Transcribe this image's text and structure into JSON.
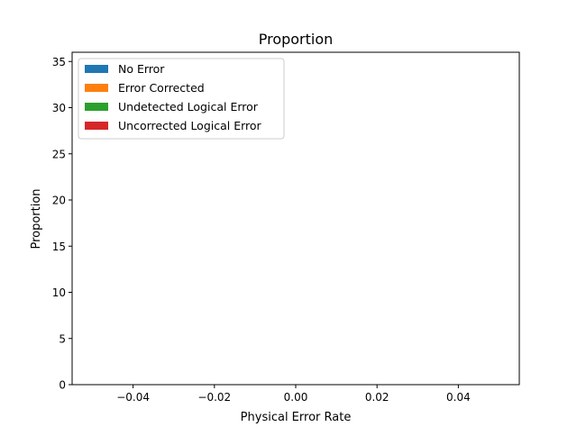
{
  "chart_data": {
    "type": "bar",
    "title": "Proportion",
    "xlabel": "Physical Error Rate",
    "ylabel": "Proportion",
    "xlim": [
      -0.055,
      0.055
    ],
    "ylim": [
      0,
      36
    ],
    "xticks": [
      -0.04,
      -0.02,
      0.0,
      0.02,
      0.04
    ],
    "xtick_labels": [
      "−0.04",
      "−0.02",
      "0.00",
      "0.02",
      "0.04"
    ],
    "yticks": [
      0,
      5,
      10,
      15,
      20,
      25,
      30,
      35
    ],
    "ytick_labels": [
      "0",
      "5",
      "10",
      "15",
      "20",
      "25",
      "30",
      "35"
    ],
    "grid": false,
    "legend_position": "top-left",
    "series": [
      {
        "name": "No Error",
        "color": "#1f77b4",
        "values": []
      },
      {
        "name": "Error Corrected",
        "color": "#ff7f0e",
        "values": []
      },
      {
        "name": "Undetected Logical Error",
        "color": "#2ca02c",
        "values": []
      },
      {
        "name": "Uncorrected Logical Error",
        "color": "#d62728",
        "values": []
      }
    ]
  }
}
